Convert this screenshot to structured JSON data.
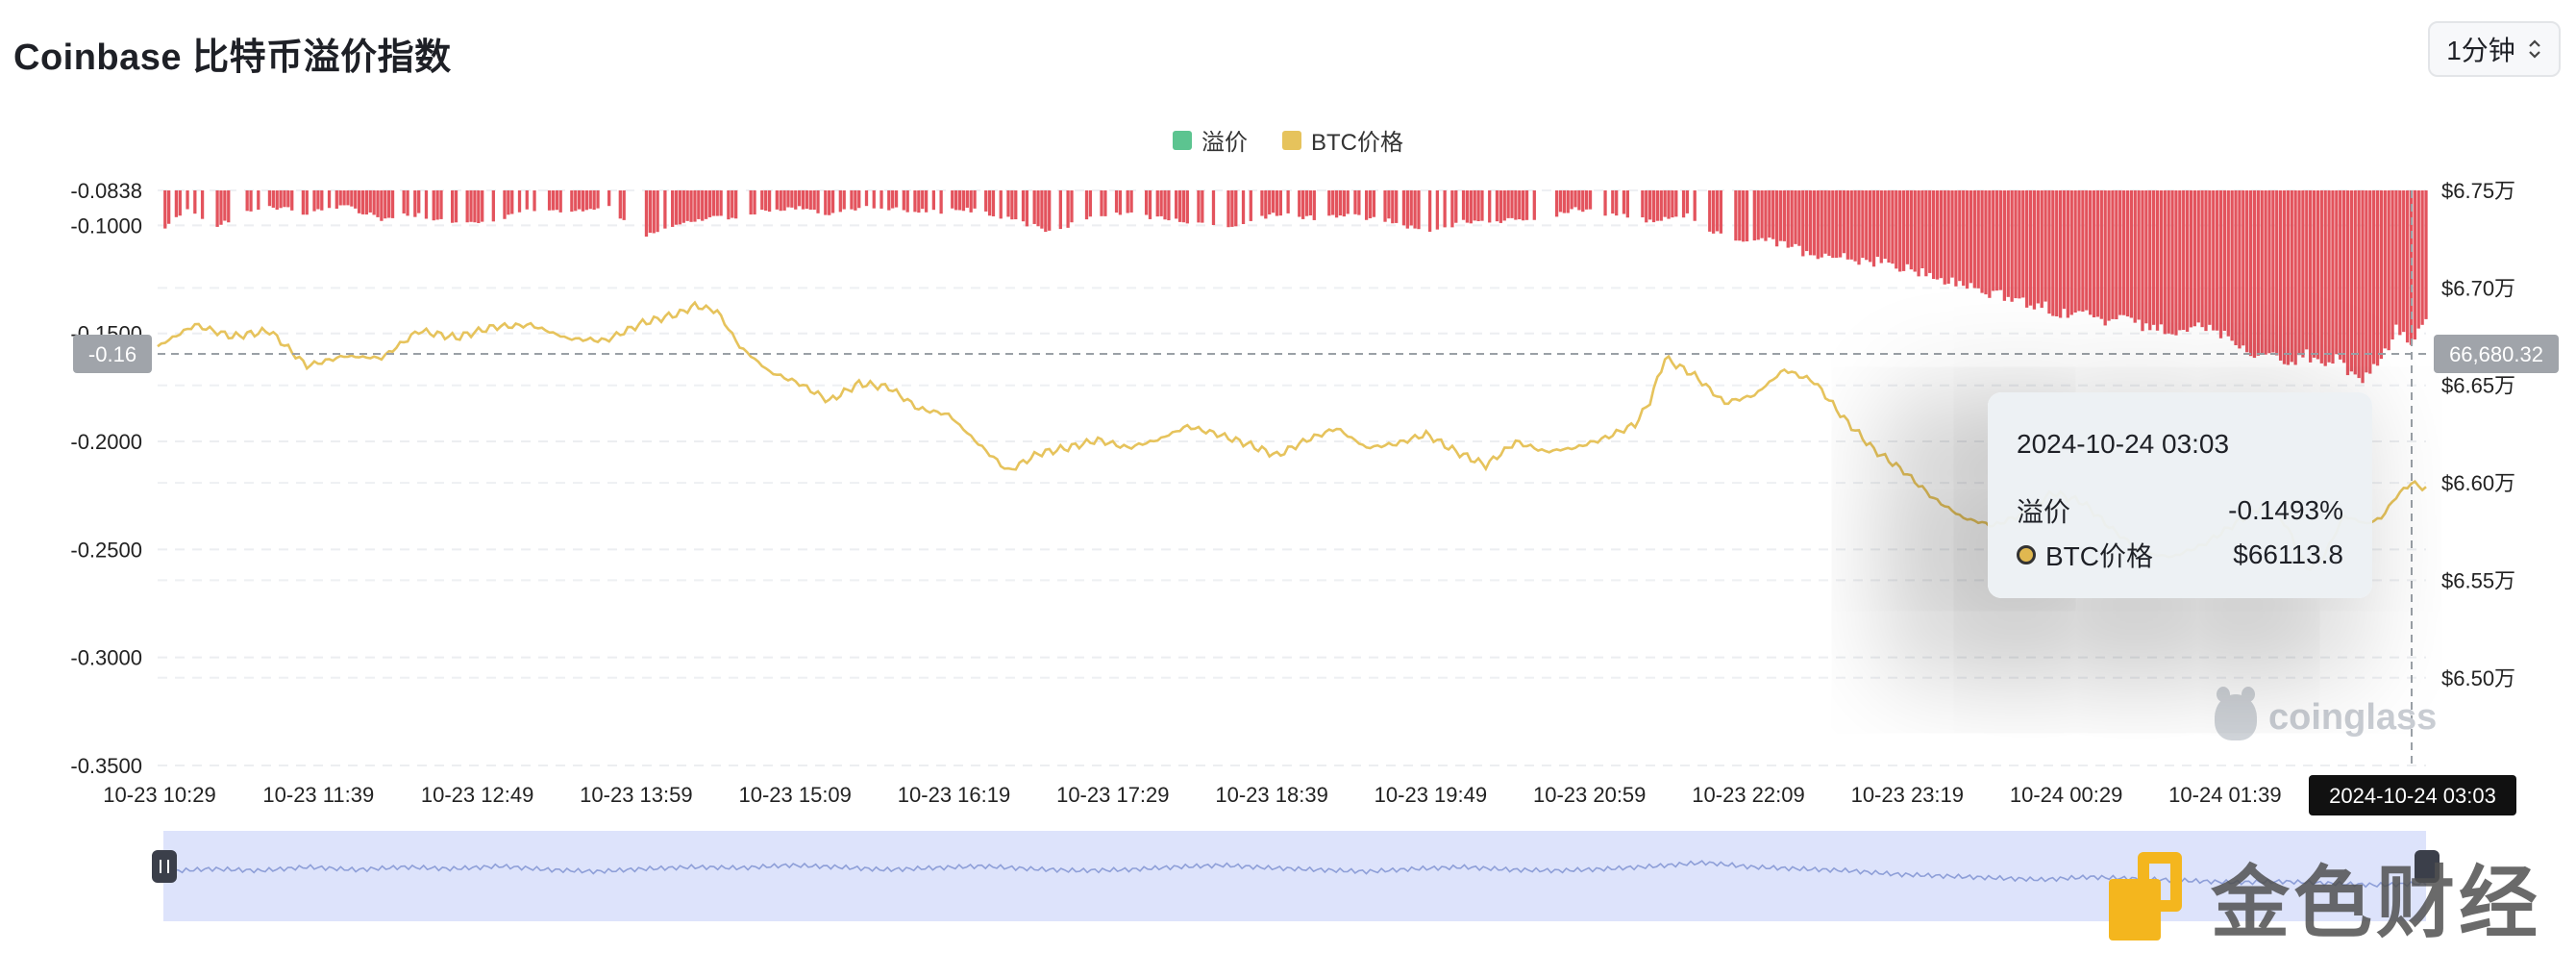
{
  "header": {
    "title": "Coinbase 比特币溢价指数",
    "interval": "1分钟"
  },
  "tooltip": {
    "time": "2024-10-24 03:03",
    "premium_label": "溢价",
    "premium_value": "-0.1493%",
    "price_label": "BTC价格",
    "price_value": "$66113.8"
  },
  "crosshair": {
    "left_label": "-0.16",
    "right_label": "66,680.32",
    "x_label": "2024-10-24 03:03"
  },
  "watermarks": {
    "site": "coinglass",
    "brand": "金色财经"
  },
  "chart_data": {
    "type": "bar+line",
    "legend": [
      "溢价",
      "BTC价格"
    ],
    "legend_placement": "top-center",
    "colors": {
      "premium_bar": "#e3535d",
      "premium_legend": "#5cc490",
      "price_line": "#e6c35c",
      "crosshair": "#9aa0a6",
      "navigator_fill": "#dde3fb",
      "navigator_line": "#8e9fd8"
    },
    "x_ticks": [
      "10-23 10:29",
      "10-23 11:39",
      "10-23 12:49",
      "10-23 13:59",
      "10-23 15:09",
      "10-23 16:19",
      "10-23 17:29",
      "10-23 18:39",
      "10-23 19:49",
      "10-23 20:59",
      "10-23 22:09",
      "10-23 23:19",
      "10-24 00:29",
      "10-24 01:39"
    ],
    "y_left": {
      "ticks": [
        "-0.0838",
        "-0.1000",
        "-0.1500",
        "-0.2000",
        "-0.2500",
        "-0.3000",
        "-0.3500"
      ],
      "range": [
        -0.0838,
        -0.35
      ],
      "tick_values": [
        -0.0838,
        -0.1,
        -0.15,
        -0.2,
        -0.25,
        -0.3,
        -0.35
      ]
    },
    "y_right": {
      "ticks": [
        "$6.75万",
        "$6.70万",
        "$6.65万",
        "$6.60万",
        "$6.55万",
        "$6.50万"
      ],
      "tick_values": [
        67500,
        67000,
        66500,
        66000,
        65500,
        65000
      ],
      "range": [
        64550,
        67500
      ]
    },
    "grid": true,
    "premium_series": [
      [
        0,
        -0.1
      ],
      [
        4,
        -0.091
      ],
      [
        8,
        -0.098
      ],
      [
        12,
        -0.09
      ],
      [
        16,
        -0.089
      ],
      [
        20,
        -0.092
      ],
      [
        25,
        -0.088
      ],
      [
        30,
        -0.094
      ],
      [
        35,
        -0.092
      ],
      [
        40,
        -0.097
      ],
      [
        45,
        -0.095
      ],
      [
        50,
        -0.09
      ],
      [
        55,
        -0.092
      ],
      [
        60,
        -0.088
      ],
      [
        65,
        -0.102
      ],
      [
        70,
        -0.097
      ],
      [
        74,
        -0.093
      ],
      [
        78,
        -0.094
      ],
      [
        82,
        -0.09
      ],
      [
        86,
        -0.089
      ],
      [
        90,
        -0.092
      ],
      [
        95,
        -0.088
      ],
      [
        100,
        -0.09
      ],
      [
        105,
        -0.091
      ],
      [
        110,
        -0.09
      ],
      [
        115,
        -0.095
      ],
      [
        120,
        -0.1
      ],
      [
        125,
        -0.093
      ],
      [
        130,
        -0.092
      ],
      [
        135,
        -0.094
      ],
      [
        140,
        -0.097
      ],
      [
        145,
        -0.097
      ],
      [
        150,
        -0.092
      ],
      [
        155,
        -0.094
      ],
      [
        160,
        -0.093
      ],
      [
        165,
        -0.095
      ],
      [
        170,
        -0.1
      ],
      [
        175,
        -0.096
      ],
      [
        180,
        -0.095
      ],
      [
        185,
        -0.094
      ],
      [
        190,
        -0.09
      ],
      [
        195,
        -0.092
      ],
      [
        200,
        -0.095
      ],
      [
        205,
        -0.093
      ],
      [
        210,
        -0.103
      ],
      [
        215,
        -0.105
      ],
      [
        220,
        -0.108
      ],
      [
        225,
        -0.112
      ],
      [
        230,
        -0.114
      ],
      [
        235,
        -0.118
      ],
      [
        240,
        -0.123
      ],
      [
        245,
        -0.128
      ],
      [
        250,
        -0.132
      ],
      [
        255,
        -0.137
      ],
      [
        260,
        -0.14
      ],
      [
        262,
        -0.141
      ],
      [
        265,
        -0.142
      ],
      [
        268,
        -0.145
      ],
      [
        270,
        -0.148
      ],
      [
        272,
        -0.146
      ],
      [
        275,
        -0.143
      ],
      [
        278,
        -0.15
      ],
      [
        280,
        -0.155
      ],
      [
        282,
        -0.157
      ],
      [
        284,
        -0.158
      ],
      [
        286,
        -0.16
      ],
      [
        288,
        -0.156
      ],
      [
        290,
        -0.162
      ],
      [
        292,
        -0.159
      ],
      [
        294,
        -0.165
      ],
      [
        296,
        -0.168
      ],
      [
        298,
        -0.16
      ],
      [
        300,
        -0.145
      ],
      [
        302,
        -0.15
      ],
      [
        304,
        -0.14
      ]
    ],
    "price_series": [
      [
        0,
        66700
      ],
      [
        5,
        66810
      ],
      [
        10,
        66750
      ],
      [
        15,
        66780
      ],
      [
        20,
        66600
      ],
      [
        25,
        66650
      ],
      [
        30,
        66640
      ],
      [
        35,
        66780
      ],
      [
        40,
        66745
      ],
      [
        45,
        66800
      ],
      [
        50,
        66810
      ],
      [
        55,
        66740
      ],
      [
        60,
        66730
      ],
      [
        65,
        66820
      ],
      [
        70,
        66870
      ],
      [
        72,
        66910
      ],
      [
        75,
        66880
      ],
      [
        78,
        66700
      ],
      [
        82,
        66570
      ],
      [
        86,
        66510
      ],
      [
        90,
        66420
      ],
      [
        94,
        66510
      ],
      [
        98,
        66490
      ],
      [
        102,
        66380
      ],
      [
        106,
        66350
      ],
      [
        110,
        66200
      ],
      [
        114,
        66060
      ],
      [
        118,
        66150
      ],
      [
        122,
        66180
      ],
      [
        126,
        66220
      ],
      [
        130,
        66180
      ],
      [
        134,
        66220
      ],
      [
        138,
        66290
      ],
      [
        142,
        66250
      ],
      [
        146,
        66200
      ],
      [
        150,
        66140
      ],
      [
        154,
        66220
      ],
      [
        158,
        66280
      ],
      [
        162,
        66180
      ],
      [
        166,
        66200
      ],
      [
        170,
        66250
      ],
      [
        174,
        66160
      ],
      [
        178,
        66090
      ],
      [
        182,
        66210
      ],
      [
        186,
        66160
      ],
      [
        190,
        66180
      ],
      [
        194,
        66230
      ],
      [
        198,
        66300
      ],
      [
        200,
        66420
      ],
      [
        202,
        66640
      ],
      [
        206,
        66550
      ],
      [
        210,
        66410
      ],
      [
        214,
        66450
      ],
      [
        218,
        66580
      ],
      [
        222,
        66520
      ],
      [
        226,
        66330
      ],
      [
        230,
        66170
      ],
      [
        234,
        66060
      ],
      [
        238,
        65920
      ],
      [
        242,
        65820
      ],
      [
        246,
        65780
      ],
      [
        250,
        65840
      ],
      [
        254,
        65950
      ],
      [
        258,
        65900
      ],
      [
        262,
        65760
      ],
      [
        266,
        65640
      ],
      [
        270,
        65620
      ],
      [
        274,
        65680
      ],
      [
        278,
        65780
      ],
      [
        282,
        65880
      ],
      [
        285,
        65800
      ],
      [
        288,
        65560
      ],
      [
        290,
        65600
      ],
      [
        293,
        65830
      ],
      [
        296,
        65790
      ],
      [
        298,
        65820
      ],
      [
        300,
        65930
      ],
      [
        302,
        66000
      ],
      [
        304,
        65970
      ]
    ],
    "navigator_series": [
      0.55,
      0.58,
      0.56,
      0.6,
      0.57,
      0.6,
      0.58,
      0.61,
      0.57,
      0.55,
      0.58,
      0.6,
      0.59,
      0.62,
      0.6,
      0.57,
      0.59,
      0.61,
      0.58,
      0.56,
      0.57,
      0.6,
      0.62,
      0.59,
      0.57,
      0.55,
      0.58,
      0.6,
      0.57,
      0.56,
      0.58,
      0.61,
      0.65,
      0.6,
      0.58,
      0.56,
      0.52,
      0.5,
      0.48,
      0.46,
      0.49,
      0.47,
      0.45,
      0.43,
      0.44,
      0.42,
      0.4,
      0.42
    ]
  }
}
